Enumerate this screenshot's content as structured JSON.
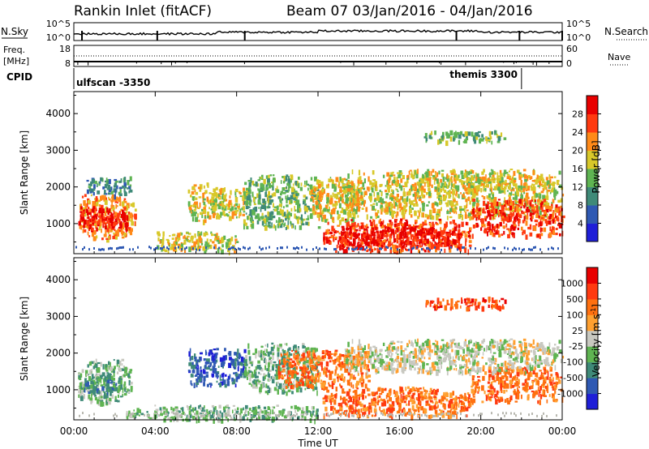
{
  "header": {
    "station": "Rankin Inlet (fitACF)",
    "beam_dates": "Beam 07  03/Jan/2016 - 04/Jan/2016"
  },
  "strip_panels": {
    "nsky": {
      "left_label": "N.Sky",
      "right_label": "N.Search",
      "left_ticks": [
        "10^5",
        "10^0"
      ],
      "right_ticks": [
        "10^5",
        "10^0"
      ]
    },
    "freq": {
      "left_label_1": "Freq.",
      "left_label_2": "[MHz]",
      "right_label": "Nave",
      "left_ticks": [
        "18",
        "8"
      ],
      "right_ticks": [
        "60",
        "0"
      ]
    },
    "cpid": {
      "label": "CPID",
      "modes": [
        {
          "name": "ulfscan -3350",
          "start_hour": 0
        },
        {
          "name": "themis 3300",
          "start_hour": 22
        }
      ]
    }
  },
  "chart_data": [
    {
      "type": "heatmap",
      "name": "power",
      "xlabel": "",
      "ylabel": "Slant Range [km]",
      "xlim": [
        0,
        24
      ],
      "ylim": [
        180,
        4600
      ],
      "y_ticks": [
        1000,
        2000,
        3000,
        4000
      ],
      "colorbar": {
        "label": "Power [dB]",
        "tick_labels": [
          "4",
          "8",
          "12",
          "16",
          "20",
          "24",
          "28"
        ],
        "colors": [
          "#1f1fd8",
          "#2f59b3",
          "#3f8a78",
          "#5fb452",
          "#d8c82a",
          "#ff8a18",
          "#ff3a10",
          "#e80000"
        ]
      },
      "regions": [
        {
          "x0": 0.2,
          "x1": 3.0,
          "y0": 600,
          "y1": 1850,
          "level": 5
        },
        {
          "x0": 0.2,
          "x1": 2.6,
          "y0": 850,
          "y1": 1500,
          "level": 7
        },
        {
          "x0": 0.5,
          "x1": 2.8,
          "y0": 1800,
          "y1": 2300,
          "level": 2
        },
        {
          "x0": 5.6,
          "x1": 7.0,
          "y0": 1100,
          "y1": 2150,
          "level": 4
        },
        {
          "x0": 6.8,
          "x1": 8.4,
          "y0": 1200,
          "y1": 2000,
          "level": 4
        },
        {
          "x0": 8.3,
          "x1": 12.0,
          "y0": 900,
          "y1": 2350,
          "level": 3
        },
        {
          "x0": 4.0,
          "x1": 8.0,
          "y0": 250,
          "y1": 800,
          "level": 4
        },
        {
          "x0": 11.6,
          "x1": 14.0,
          "y0": 1100,
          "y1": 2300,
          "level": 4
        },
        {
          "x0": 13.3,
          "x1": 24.0,
          "y0": 1200,
          "y1": 2500,
          "level": 4
        },
        {
          "x0": 12.2,
          "x1": 19.5,
          "y0": 280,
          "y1": 1150,
          "level": 6
        },
        {
          "x0": 13.0,
          "x1": 19.0,
          "y0": 400,
          "y1": 950,
          "level": 7
        },
        {
          "x0": 19.5,
          "x1": 24.0,
          "y0": 700,
          "y1": 1700,
          "level": 6
        },
        {
          "x0": 17.2,
          "x1": 21.2,
          "y0": 3250,
          "y1": 3550,
          "level": 3
        },
        {
          "x0": 18.5,
          "x1": 21.2,
          "y0": 1900,
          "y1": 2300,
          "level": 4
        }
      ]
    },
    {
      "type": "heatmap",
      "name": "velocity",
      "xlabel": "Time UT",
      "ylabel": "Slant Range [km]",
      "xlim": [
        0,
        24
      ],
      "ylim": [
        180,
        4600
      ],
      "y_ticks": [
        1000,
        2000,
        3000,
        4000
      ],
      "x_ticks": [
        "00:00",
        "04:00",
        "08:00",
        "12:00",
        "16:00",
        "20:00",
        "00:00"
      ],
      "colorbar": {
        "label": "Velocity [m s",
        "label_superscript": "-1",
        "label_end": "]",
        "tick_labels": [
          "1000",
          "500",
          "100",
          "25",
          "-25",
          "-100",
          "-500",
          "-1000"
        ],
        "colors": [
          "#1f1fd8",
          "#2f59b3",
          "#3f8a78",
          "#5fb452",
          "#c8c8c0",
          "#ffa030",
          "#ff7010",
          "#ff3a10",
          "#e80000"
        ]
      },
      "regions": [
        {
          "x0": 0.2,
          "x1": 2.8,
          "y0": 650,
          "y1": 1850,
          "level": 3
        },
        {
          "x0": 0.4,
          "x1": 2.4,
          "y0": 950,
          "y1": 1400,
          "level": 2
        },
        {
          "x0": 5.6,
          "x1": 8.4,
          "y0": 1150,
          "y1": 2150,
          "level": 1
        },
        {
          "x0": 8.3,
          "x1": 12.0,
          "y0": 950,
          "y1": 2300,
          "level": 3
        },
        {
          "x0": 10.0,
          "x1": 14.5,
          "y0": 1100,
          "y1": 2100,
          "level": 6
        },
        {
          "x0": 12.2,
          "x1": 19.5,
          "y0": 300,
          "y1": 1100,
          "level": 6
        },
        {
          "x0": 19.5,
          "x1": 24.0,
          "y0": 700,
          "y1": 1650,
          "level": 6
        },
        {
          "x0": 13.3,
          "x1": 24.0,
          "y0": 1500,
          "y1": 2400,
          "level": 4
        },
        {
          "x0": 17.2,
          "x1": 21.2,
          "y0": 3250,
          "y1": 3550,
          "level": 7
        },
        {
          "x0": 2.5,
          "x1": 12.0,
          "y0": 200,
          "y1": 600,
          "level": 3
        }
      ]
    }
  ]
}
